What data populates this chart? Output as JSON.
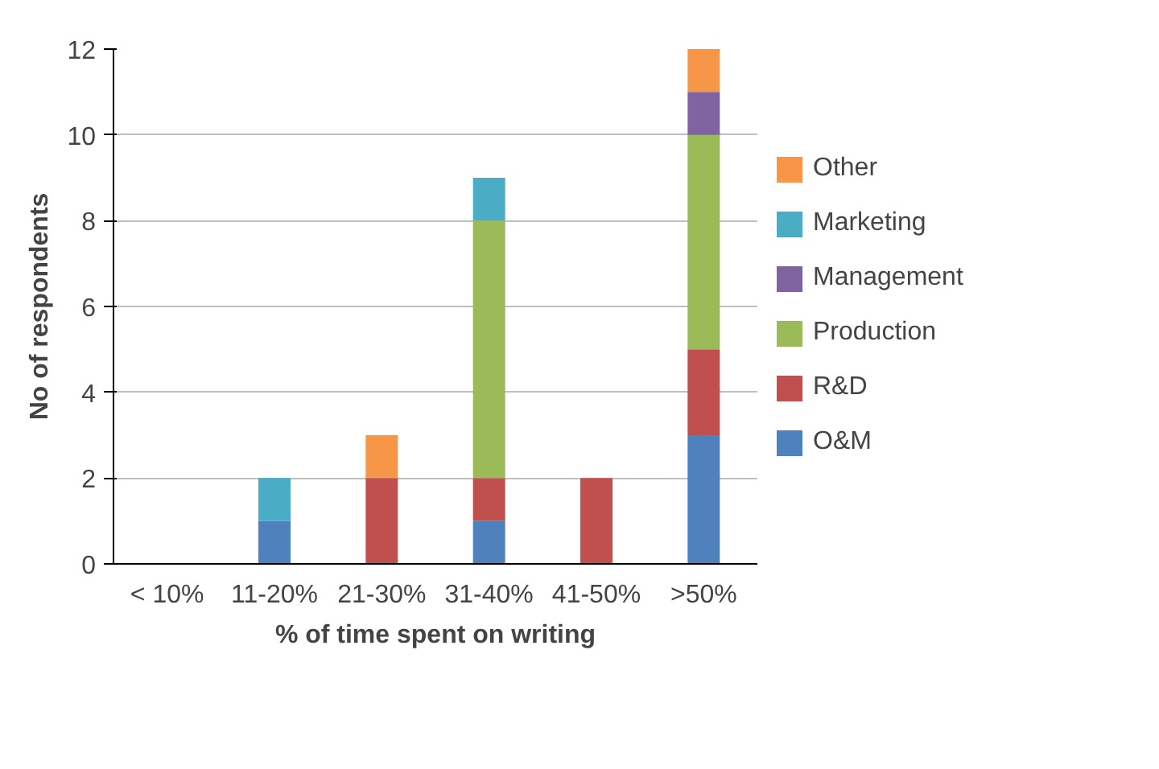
{
  "chart_data": {
    "type": "bar",
    "stacked": true,
    "xlabel": "% of time spent on writing",
    "ylabel": "No of respondents",
    "categories": [
      "< 10%",
      "11-20%",
      "21-30%",
      "31-40%",
      "41-50%",
      ">50%"
    ],
    "series": [
      {
        "name": "O&M",
        "color": "#4f81bd",
        "values": [
          0,
          1,
          0,
          1,
          0,
          3
        ]
      },
      {
        "name": "R&D",
        "color": "#c0504d",
        "values": [
          0,
          0,
          2,
          1,
          2,
          2
        ]
      },
      {
        "name": "Production",
        "color": "#9bbb59",
        "values": [
          0,
          0,
          0,
          6,
          0,
          5
        ]
      },
      {
        "name": "Management",
        "color": "#8064a2",
        "values": [
          0,
          0,
          0,
          0,
          0,
          1
        ]
      },
      {
        "name": "Marketing",
        "color": "#4bacc6",
        "values": [
          0,
          1,
          0,
          1,
          0,
          0
        ]
      },
      {
        "name": "Other",
        "color": "#f79646",
        "values": [
          0,
          0,
          1,
          0,
          0,
          1
        ]
      }
    ],
    "ylim": [
      0,
      12
    ],
    "yticks": [
      0,
      2,
      4,
      6,
      8,
      10,
      12
    ],
    "grid": "y",
    "legend": "right"
  }
}
